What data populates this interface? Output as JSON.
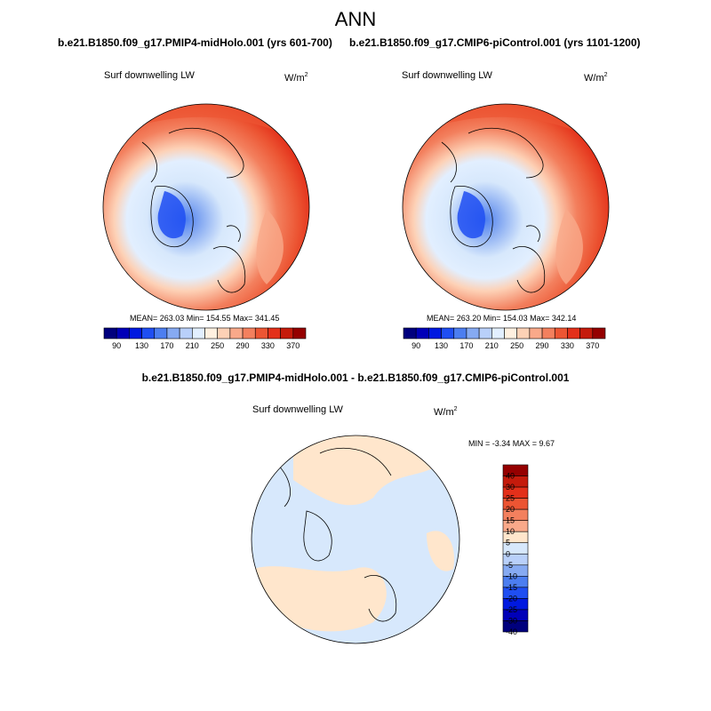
{
  "figure": {
    "title": "ANN"
  },
  "panels": [
    {
      "case_title": "b.e21.B1850.f09_g17.PMIP4-midHolo.001 (yrs 601-700)",
      "variable": "Surf downwelling LW",
      "units_base": "W/m",
      "units_exp": "2",
      "stats_text": "MEAN= 263.03  Min= 154.55  Max= 341.45"
    },
    {
      "case_title": "b.e21.B1850.f09_g17.CMIP6-piControl.001 (yrs 1101-1200)",
      "variable": "Surf downwelling LW",
      "units_base": "W/m",
      "units_exp": "2",
      "stats_text": "MEAN= 263.20  Min= 154.03  Max= 342.14"
    },
    {
      "case_title": "b.e21.B1850.f09_g17.PMIP4-midHolo.001 - b.e21.B1850.f09_g17.CMIP6-piControl.001",
      "variable": "Surf downwelling LW",
      "units_base": "W/m",
      "units_exp": "2",
      "stats_text": "MIN =  -3.34 MAX =   9.67"
    }
  ],
  "colorbars": {
    "abs": {
      "colors": [
        "#00007d",
        "#0000b8",
        "#0019e0",
        "#1f4ef2",
        "#4c7ef0",
        "#86aaf2",
        "#b9d0fa",
        "#e2efff",
        "#fff0e0",
        "#fdd1b6",
        "#f9a98a",
        "#f3805e",
        "#ec5533",
        "#e3301a",
        "#c51b0c",
        "#950000"
      ],
      "tick_labels": [
        "90",
        "130",
        "170",
        "210",
        "250",
        "290",
        "330",
        "370"
      ]
    },
    "diff": {
      "colors": [
        "#950000",
        "#c51b0c",
        "#e3301a",
        "#ec5533",
        "#f3805e",
        "#f9a98a",
        "#ffe6cc",
        "#d7e8fc",
        "#b9d0fa",
        "#86aaf2",
        "#4c7ef0",
        "#1f4ef2",
        "#0019e0",
        "#0000b8",
        "#00007d"
      ],
      "tick_labels": [
        "40",
        "30",
        "25",
        "20",
        "15",
        "10",
        "5",
        "0",
        "-5",
        "-10",
        "-15",
        "-20",
        "-25",
        "-30",
        "-40"
      ]
    }
  },
  "chart_data": [
    {
      "type": "heatmap",
      "projection": "polar stereographic (north)",
      "title": "b.e21.B1850.f09_g17.PMIP4-midHolo.001 (yrs 601-700)",
      "variable": "Surf downwelling LW",
      "units": "W/m2",
      "mean": 263.03,
      "min": 154.55,
      "max": 341.45,
      "contour_levels": [
        90,
        130,
        170,
        210,
        250,
        290,
        330,
        370
      ]
    },
    {
      "type": "heatmap",
      "projection": "polar stereographic (north)",
      "title": "b.e21.B1850.f09_g17.CMIP6-piControl.001 (yrs 1101-1200)",
      "variable": "Surf downwelling LW",
      "units": "W/m2",
      "mean": 263.2,
      "min": 154.03,
      "max": 342.14,
      "contour_levels": [
        90,
        130,
        170,
        210,
        250,
        290,
        330,
        370
      ]
    },
    {
      "type": "heatmap",
      "projection": "polar stereographic (north)",
      "title": "b.e21.B1850.f09_g17.PMIP4-midHolo.001 - b.e21.B1850.f09_g17.CMIP6-piControl.001",
      "variable": "Surf downwelling LW",
      "units": "W/m2",
      "min": -3.34,
      "max": 9.67,
      "contour_levels": [
        -40,
        -30,
        -25,
        -20,
        -15,
        -10,
        -5,
        0,
        5,
        10,
        15,
        20,
        25,
        30,
        40
      ]
    }
  ]
}
